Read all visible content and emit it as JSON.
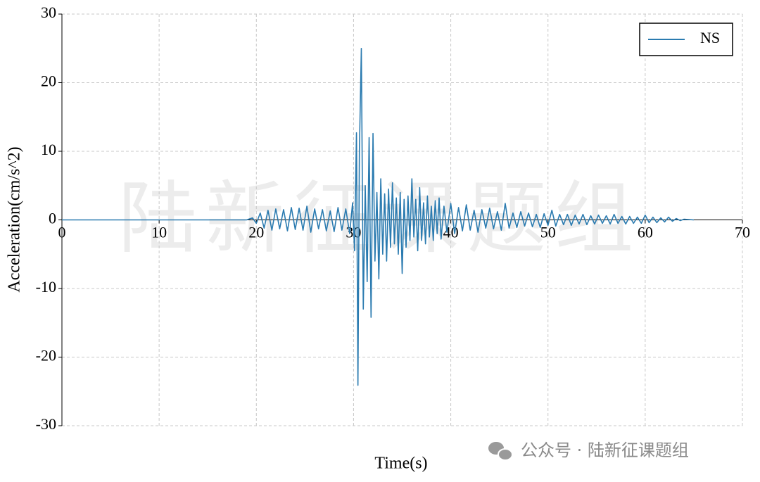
{
  "chart_data": {
    "type": "line",
    "xlabel": "Time(s)",
    "ylabel": "Acceleration(cm/s^2)",
    "watermark": "陆新征课题组",
    "footer": "公众号 · 陆新征课题组",
    "xlim": [
      0,
      70
    ],
    "xticks": [
      0,
      10,
      20,
      30,
      40,
      50,
      60,
      70
    ],
    "ylim": [
      -30,
      30
    ],
    "yticks": [
      -30,
      -20,
      -10,
      0,
      10,
      20,
      30
    ],
    "grid": true,
    "legend": "upper right",
    "x": [
      0,
      19,
      19.6,
      20.0,
      20.4,
      20.8,
      21.2,
      21.6,
      22.0,
      22.4,
      22.8,
      23.2,
      23.6,
      24.0,
      24.4,
      24.8,
      25.2,
      25.6,
      26.0,
      26.4,
      26.8,
      27.2,
      27.6,
      28.0,
      28.4,
      28.8,
      29.2,
      29.6,
      29.9,
      30.1,
      30.3,
      30.45,
      30.6,
      30.8,
      31.0,
      31.2,
      31.4,
      31.6,
      31.8,
      32.0,
      32.2,
      32.4,
      32.6,
      32.8,
      33.0,
      33.2,
      33.4,
      33.6,
      33.8,
      34.0,
      34.2,
      34.4,
      34.6,
      34.8,
      35.0,
      35.2,
      35.4,
      35.6,
      35.8,
      36.0,
      36.2,
      36.4,
      36.6,
      36.8,
      37.0,
      37.2,
      37.4,
      37.6,
      37.8,
      38.0,
      38.2,
      38.4,
      38.6,
      38.8,
      39.0,
      39.3,
      39.6,
      40.0,
      40.4,
      40.8,
      41.2,
      41.6,
      42.0,
      42.4,
      42.8,
      43.2,
      43.6,
      44.0,
      44.4,
      44.8,
      45.2,
      45.6,
      46.0,
      46.4,
      46.8,
      47.2,
      47.6,
      48.0,
      48.4,
      48.8,
      49.2,
      49.6,
      50.0,
      50.4,
      50.8,
      51.2,
      51.6,
      52.0,
      52.4,
      52.8,
      53.2,
      53.6,
      54.0,
      54.4,
      54.8,
      55.2,
      55.6,
      56.0,
      56.4,
      56.8,
      57.2,
      57.6,
      58.0,
      58.4,
      58.8,
      59.2,
      59.6,
      60.0,
      60.4,
      60.8,
      61.2,
      61.6,
      62.0,
      62.4,
      62.8,
      63.2,
      63.6,
      64.0,
      65.0
    ],
    "series": [
      {
        "name": "NS",
        "color": "#2b7bb0",
        "values": [
          0,
          0,
          0.3,
          -0.5,
          1.0,
          -1.2,
          1.4,
          -1.5,
          1.6,
          -1.3,
          1.5,
          -1.6,
          1.8,
          -1.4,
          1.7,
          -1.5,
          2.0,
          -1.8,
          1.6,
          -1.3,
          1.5,
          -1.6,
          1.3,
          -1.7,
          1.8,
          -1.5,
          1.6,
          -2.0,
          2.5,
          -4.5,
          12.7,
          -24.1,
          10,
          25,
          -13,
          5,
          -9,
          12,
          -14.2,
          12.6,
          -6,
          4,
          -8.6,
          6,
          -5,
          3.8,
          -6,
          4.5,
          -4,
          5.4,
          -3.5,
          3.2,
          -5,
          4,
          -7.8,
          3,
          -4,
          3.5,
          -3,
          6,
          -2.5,
          3,
          -4.5,
          4.7,
          -3,
          2.5,
          -3.5,
          3.5,
          -2.5,
          2,
          -3,
          2.8,
          -2,
          3.2,
          -2.8,
          2,
          -1.8,
          2.4,
          -2,
          1.8,
          -1.6,
          2.2,
          -1.5,
          1.4,
          -1.8,
          1.5,
          -1.2,
          1.7,
          -1.3,
          1.2,
          -1.5,
          2.4,
          -1.2,
          1.0,
          -1.1,
          1.2,
          -0.9,
          1.0,
          -1.0,
          0.8,
          -1.1,
          0.9,
          -0.8,
          1.4,
          -0.9,
          0.8,
          -0.7,
          0.8,
          -0.8,
          0.7,
          -0.6,
          0.8,
          -0.7,
          0.6,
          -0.6,
          0.7,
          -0.5,
          0.6,
          -0.6,
          0.8,
          -0.5,
          0.5,
          -0.6,
          0.5,
          -0.5,
          0.4,
          -0.5,
          0.7,
          -0.4,
          0.4,
          -0.4,
          0.3,
          -0.3,
          0.4,
          -0.2,
          0.2,
          -0.1,
          0.1,
          0
        ]
      }
    ]
  }
}
